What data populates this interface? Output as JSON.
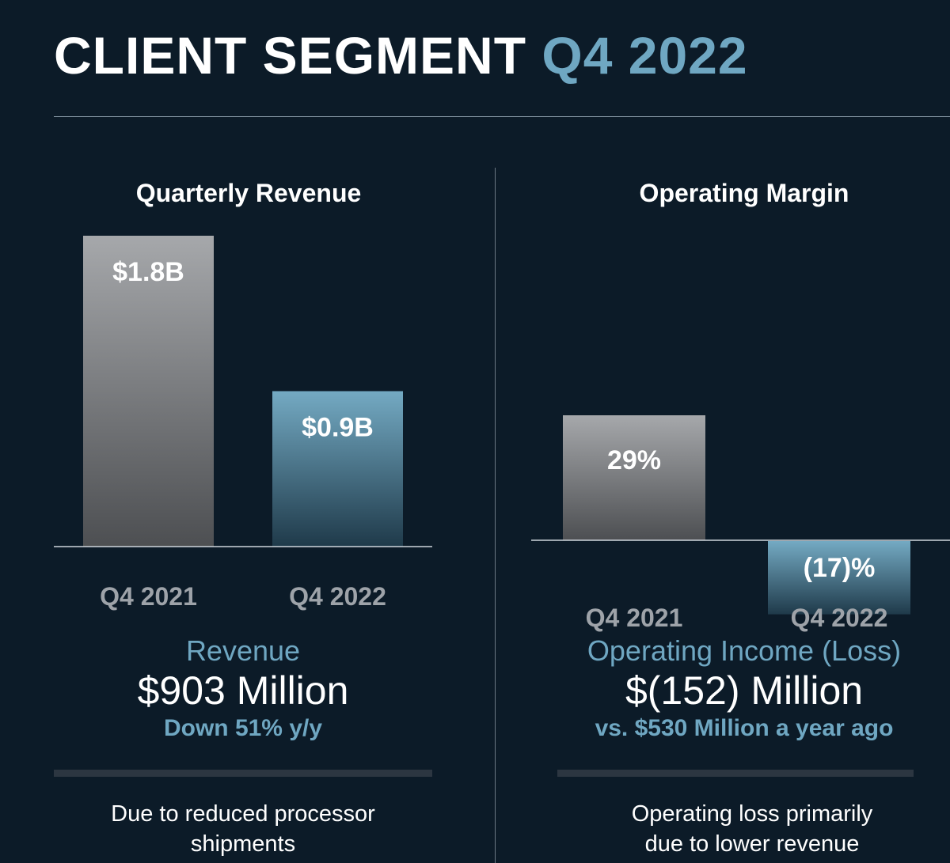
{
  "title": {
    "main": "CLIENT SEGMENT",
    "accent": "Q4 2022"
  },
  "colors": {
    "background": "#0c1b28",
    "accent": "#6fa7c2",
    "grey_bar_top": "#a6a8ab",
    "grey_bar_bottom": "#4d4f52",
    "blue_bar_top": "#74aac3",
    "blue_bar_bottom": "#1f3a4a"
  },
  "chart_data": [
    {
      "type": "bar",
      "title": "Quarterly Revenue",
      "categories": [
        "Q4 2021",
        "Q4 2022"
      ],
      "values": [
        1.8,
        0.9
      ],
      "value_labels": [
        "$1.8B",
        "$0.9B"
      ],
      "units": "USD billions",
      "ylim": [
        0,
        1.8
      ],
      "grid": false,
      "legend": "none"
    },
    {
      "type": "bar",
      "title": "Operating Margin",
      "categories": [
        "Q4 2021",
        "Q4 2022"
      ],
      "values": [
        29,
        -17
      ],
      "value_labels": [
        "29%",
        "(17)%"
      ],
      "units": "percent",
      "ylim": [
        -17,
        29
      ],
      "grid": false,
      "legend": "none"
    }
  ],
  "left_panel": {
    "metric_name": "Revenue",
    "metric_value": "$903 Million",
    "metric_sub": "Down 51% y/y",
    "note_line1": "Due to reduced processor",
    "note_line2": "shipments"
  },
  "right_panel": {
    "metric_name": "Operating Income (Loss)",
    "metric_value": "$(152) Million",
    "metric_sub": "vs. $530 Million a year ago",
    "note_line1": "Operating loss primarily",
    "note_line2": "due to lower revenue"
  }
}
